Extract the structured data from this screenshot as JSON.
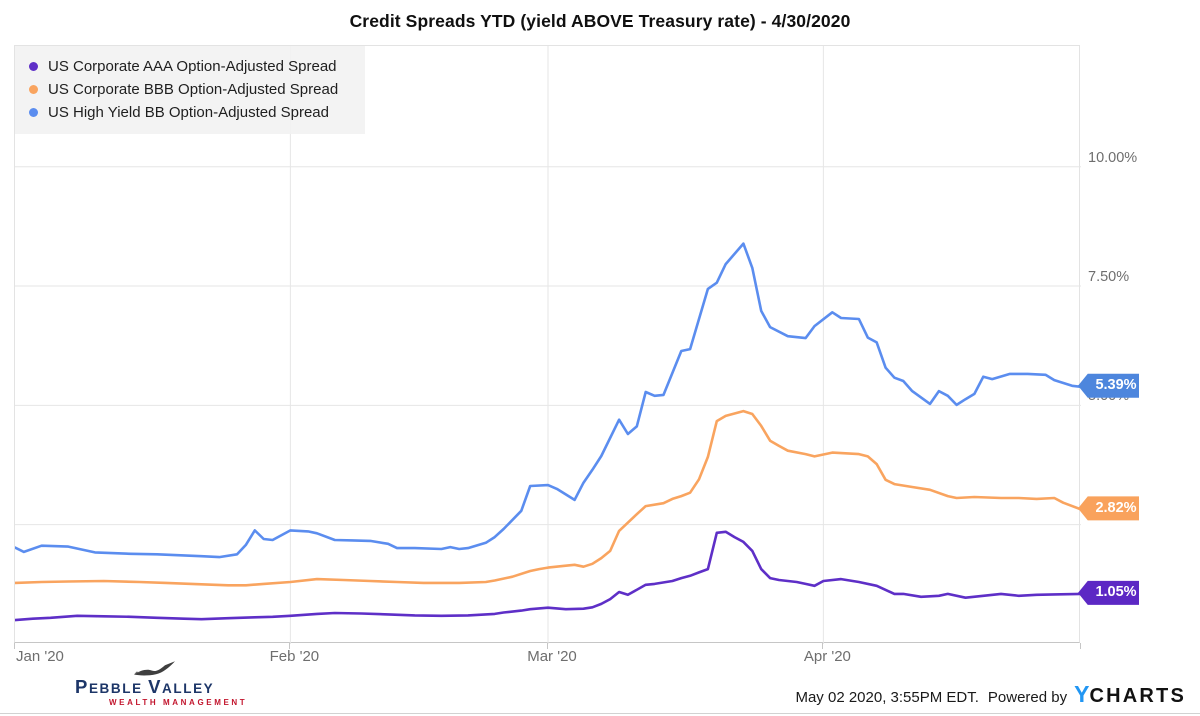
{
  "title": "Credit Spreads YTD (yield ABOVE Treasury rate) - 4/30/2020",
  "colors": {
    "aaa_purple": "#5e2fc7",
    "bbb_orange": "#f9a45f",
    "bb_blue": "#5b8def",
    "badge_purple": "#5c28c4",
    "badge_orange": "#f9a25c",
    "badge_blue": "#4d86dd",
    "gridline": "#e6e6e6",
    "axis_text": "#6e6e6e",
    "ycharts_blue": "#2196f3",
    "pebble_navy": "#1d3668",
    "pebble_red": "#c2152d"
  },
  "legend": {
    "items": [
      {
        "label": "US Corporate AAA Option-Adjusted Spread",
        "color": "#5e2fc7"
      },
      {
        "label": "US Corporate BBB Option-Adjusted Spread",
        "color": "#f9a45f"
      },
      {
        "label": "US High Yield BB Option-Adjusted Spread",
        "color": "#5b8def"
      }
    ]
  },
  "axes": {
    "y_ticks": [
      {
        "value": 10,
        "label": "10.00%"
      },
      {
        "value": 7.5,
        "label": "7.50%"
      },
      {
        "value": 5,
        "label": "5.00%"
      },
      {
        "value": 2.5,
        "label": "2.50%"
      }
    ],
    "x_ticks": [
      {
        "day": 0,
        "label": "Jan '20",
        "align": "left"
      },
      {
        "day": 31,
        "label": "Feb '20",
        "align": "center"
      },
      {
        "day": 60,
        "label": "Mar '20",
        "align": "center"
      },
      {
        "day": 91,
        "label": "Apr '20",
        "align": "center"
      }
    ],
    "x_tick_marks_days": [
      0,
      31,
      60,
      91,
      120
    ]
  },
  "footer": {
    "logo_name": "Pebble Valley",
    "logo_tagline": "WEALTH MANAGEMENT",
    "timestamp": "May 02 2020, 3:55PM EDT.",
    "powered_by": "Powered by",
    "brand": "YCharts"
  },
  "chart_data": {
    "type": "line",
    "title": "Credit Spreads YTD (yield ABOVE Treasury rate) - 4/30/2020",
    "x_unit": "days since Jan 1 2020",
    "x_range": [
      0,
      120
    ],
    "ylim": [
      0,
      12.53
    ],
    "grid": true,
    "y_gridline_values": [
      2.5,
      5,
      7.5,
      10
    ],
    "x_gridline_days": [
      31,
      60,
      91
    ],
    "legend_position": "top-left",
    "series": [
      {
        "name": "US Corporate AAA Option-Adjusted Spread",
        "color": "#5e2fc7",
        "badge_color": "#5c28c4",
        "end_label": "1.05%",
        "points": [
          [
            0,
            0.5
          ],
          [
            2,
            0.53
          ],
          [
            4,
            0.55
          ],
          [
            7,
            0.59
          ],
          [
            10,
            0.58
          ],
          [
            13,
            0.57
          ],
          [
            16,
            0.55
          ],
          [
            19,
            0.53
          ],
          [
            21,
            0.52
          ],
          [
            24,
            0.54
          ],
          [
            27,
            0.56
          ],
          [
            29,
            0.57
          ],
          [
            31,
            0.59
          ],
          [
            34,
            0.63
          ],
          [
            36,
            0.65
          ],
          [
            39,
            0.64
          ],
          [
            42,
            0.62
          ],
          [
            45,
            0.6
          ],
          [
            48,
            0.59
          ],
          [
            51,
            0.6
          ],
          [
            54,
            0.63
          ],
          [
            55,
            0.66
          ],
          [
            57,
            0.7
          ],
          [
            58,
            0.73
          ],
          [
            60,
            0.76
          ],
          [
            62,
            0.73
          ],
          [
            64,
            0.74
          ],
          [
            65,
            0.77
          ],
          [
            66,
            0.84
          ],
          [
            67,
            0.94
          ],
          [
            68,
            1.09
          ],
          [
            69,
            1.03
          ],
          [
            71,
            1.24
          ],
          [
            72,
            1.26
          ],
          [
            74,
            1.32
          ],
          [
            75,
            1.38
          ],
          [
            76,
            1.43
          ],
          [
            77,
            1.5
          ],
          [
            78,
            1.57
          ],
          [
            79,
            2.33
          ],
          [
            80,
            2.35
          ],
          [
            81,
            2.24
          ],
          [
            82,
            2.14
          ],
          [
            83,
            1.95
          ],
          [
            84,
            1.57
          ],
          [
            85,
            1.38
          ],
          [
            86,
            1.34
          ],
          [
            88,
            1.3
          ],
          [
            89,
            1.26
          ],
          [
            90,
            1.22
          ],
          [
            91,
            1.32
          ],
          [
            93,
            1.36
          ],
          [
            95,
            1.3
          ],
          [
            97,
            1.22
          ],
          [
            99,
            1.05
          ],
          [
            100,
            1.05
          ],
          [
            102,
            0.99
          ],
          [
            104,
            1.01
          ],
          [
            105,
            1.05
          ],
          [
            107,
            0.97
          ],
          [
            109,
            1.01
          ],
          [
            111,
            1.05
          ],
          [
            113,
            1.01
          ],
          [
            115,
            1.03
          ],
          [
            117,
            1.04
          ],
          [
            120,
            1.05
          ]
        ]
      },
      {
        "name": "US Corporate BBB Option-Adjusted Spread",
        "color": "#f9a45f",
        "badge_color": "#f9a25c",
        "end_label": "2.82%",
        "points": [
          [
            0,
            1.28
          ],
          [
            3,
            1.3
          ],
          [
            6,
            1.31
          ],
          [
            10,
            1.32
          ],
          [
            14,
            1.3
          ],
          [
            17,
            1.28
          ],
          [
            21,
            1.25
          ],
          [
            24,
            1.23
          ],
          [
            26,
            1.23
          ],
          [
            28,
            1.26
          ],
          [
            31,
            1.3
          ],
          [
            34,
            1.36
          ],
          [
            37,
            1.34
          ],
          [
            40,
            1.32
          ],
          [
            43,
            1.3
          ],
          [
            46,
            1.28
          ],
          [
            50,
            1.28
          ],
          [
            53,
            1.3
          ],
          [
            54,
            1.33
          ],
          [
            56,
            1.41
          ],
          [
            58,
            1.53
          ],
          [
            59,
            1.57
          ],
          [
            60,
            1.6
          ],
          [
            62,
            1.64
          ],
          [
            63,
            1.66
          ],
          [
            64,
            1.62
          ],
          [
            65,
            1.68
          ],
          [
            66,
            1.8
          ],
          [
            67,
            1.95
          ],
          [
            68,
            2.37
          ],
          [
            70,
            2.72
          ],
          [
            71,
            2.89
          ],
          [
            73,
            2.95
          ],
          [
            74,
            3.04
          ],
          [
            75,
            3.1
          ],
          [
            76,
            3.17
          ],
          [
            77,
            3.45
          ],
          [
            78,
            3.92
          ],
          [
            79,
            4.67
          ],
          [
            80,
            4.78
          ],
          [
            82,
            4.88
          ],
          [
            83,
            4.82
          ],
          [
            84,
            4.57
          ],
          [
            85,
            4.26
          ],
          [
            86,
            4.15
          ],
          [
            87,
            4.05
          ],
          [
            89,
            3.98
          ],
          [
            90,
            3.93
          ],
          [
            92,
            4.01
          ],
          [
            95,
            3.98
          ],
          [
            96,
            3.93
          ],
          [
            97,
            3.77
          ],
          [
            98,
            3.44
          ],
          [
            99,
            3.35
          ],
          [
            101,
            3.29
          ],
          [
            103,
            3.23
          ],
          [
            105,
            3.1
          ],
          [
            106,
            3.06
          ],
          [
            108,
            3.08
          ],
          [
            111,
            3.06
          ],
          [
            113,
            3.06
          ],
          [
            115,
            3.04
          ],
          [
            117,
            3.06
          ],
          [
            118,
            2.96
          ],
          [
            120,
            2.82
          ]
        ]
      },
      {
        "name": "US High Yield BB Option-Adjusted Spread",
        "color": "#5b8def",
        "badge_color": "#4d86dd",
        "end_label": "5.39%",
        "points": [
          [
            0,
            2.02
          ],
          [
            1,
            1.93
          ],
          [
            3,
            2.06
          ],
          [
            6,
            2.04
          ],
          [
            9,
            1.92
          ],
          [
            13,
            1.89
          ],
          [
            16,
            1.88
          ],
          [
            21,
            1.84
          ],
          [
            23,
            1.82
          ],
          [
            25,
            1.88
          ],
          [
            26,
            2.08
          ],
          [
            27,
            2.38
          ],
          [
            28,
            2.2
          ],
          [
            29,
            2.18
          ],
          [
            31,
            2.38
          ],
          [
            33,
            2.36
          ],
          [
            34,
            2.32
          ],
          [
            36,
            2.18
          ],
          [
            38,
            2.17
          ],
          [
            40,
            2.16
          ],
          [
            42,
            2.1
          ],
          [
            43,
            2.01
          ],
          [
            45,
            2.01
          ],
          [
            48,
            1.99
          ],
          [
            49,
            2.03
          ],
          [
            50,
            1.99
          ],
          [
            51,
            2.01
          ],
          [
            53,
            2.12
          ],
          [
            54,
            2.24
          ],
          [
            55,
            2.41
          ],
          [
            57,
            2.79
          ],
          [
            58,
            3.31
          ],
          [
            60,
            3.33
          ],
          [
            61,
            3.25
          ],
          [
            63,
            3.02
          ],
          [
            64,
            3.38
          ],
          [
            65,
            3.65
          ],
          [
            66,
            3.94
          ],
          [
            68,
            4.7
          ],
          [
            69,
            4.4
          ],
          [
            70,
            4.56
          ],
          [
            71,
            5.28
          ],
          [
            72,
            5.2
          ],
          [
            73,
            5.22
          ],
          [
            75,
            6.14
          ],
          [
            76,
            6.18
          ],
          [
            78,
            7.44
          ],
          [
            79,
            7.57
          ],
          [
            80,
            7.96
          ],
          [
            82,
            8.39
          ],
          [
            83,
            7.88
          ],
          [
            84,
            6.98
          ],
          [
            85,
            6.64
          ],
          [
            87,
            6.45
          ],
          [
            89,
            6.41
          ],
          [
            90,
            6.66
          ],
          [
            92,
            6.95
          ],
          [
            93,
            6.83
          ],
          [
            95,
            6.81
          ],
          [
            96,
            6.42
          ],
          [
            97,
            6.32
          ],
          [
            98,
            5.79
          ],
          [
            99,
            5.58
          ],
          [
            100,
            5.51
          ],
          [
            101,
            5.3
          ],
          [
            103,
            5.03
          ],
          [
            104,
            5.3
          ],
          [
            105,
            5.2
          ],
          [
            106,
            5.01
          ],
          [
            107,
            5.13
          ],
          [
            108,
            5.24
          ],
          [
            109,
            5.6
          ],
          [
            110,
            5.55
          ],
          [
            112,
            5.66
          ],
          [
            114,
            5.66
          ],
          [
            116,
            5.64
          ],
          [
            117,
            5.53
          ],
          [
            119,
            5.41
          ],
          [
            120,
            5.39
          ]
        ]
      }
    ]
  }
}
